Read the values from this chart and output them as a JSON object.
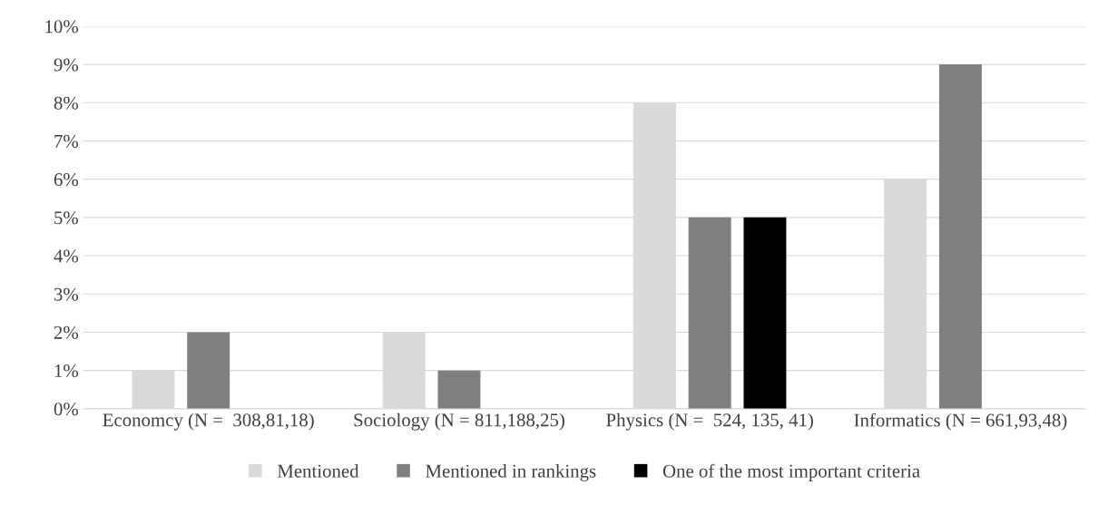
{
  "chart_data": {
    "type": "bar",
    "categories": [
      "Economcy (N =  308,81,18)",
      "Sociology (N = 811,188,25)",
      "Physics (N =  524, 135, 41)",
      "Informatics (N = 661,93,48)"
    ],
    "series": [
      {
        "name": "Mentioned",
        "color": "#d9d9d9",
        "values": [
          1,
          2,
          8,
          6
        ]
      },
      {
        "name": "Mentioned in rankings",
        "color": "#7f7f7f",
        "values": [
          2,
          1,
          5,
          9
        ]
      },
      {
        "name": "One of the most important criteria",
        "color": "#000000",
        "values": [
          null,
          null,
          5,
          null
        ]
      }
    ],
    "ylim": [
      0,
      10
    ],
    "yticks": [
      {
        "value": 0,
        "label": "0%"
      },
      {
        "value": 1,
        "label": "1%"
      },
      {
        "value": 2,
        "label": "2%"
      },
      {
        "value": 3,
        "label": "3%"
      },
      {
        "value": 4,
        "label": "4%"
      },
      {
        "value": 5,
        "label": "5%"
      },
      {
        "value": 6,
        "label": "6%"
      },
      {
        "value": 7,
        "label": "7%"
      },
      {
        "value": 8,
        "label": "8%"
      },
      {
        "value": 9,
        "label": "9%"
      },
      {
        "value": 10,
        "label": "10%"
      }
    ],
    "grid": "y",
    "legend": "bottom"
  }
}
